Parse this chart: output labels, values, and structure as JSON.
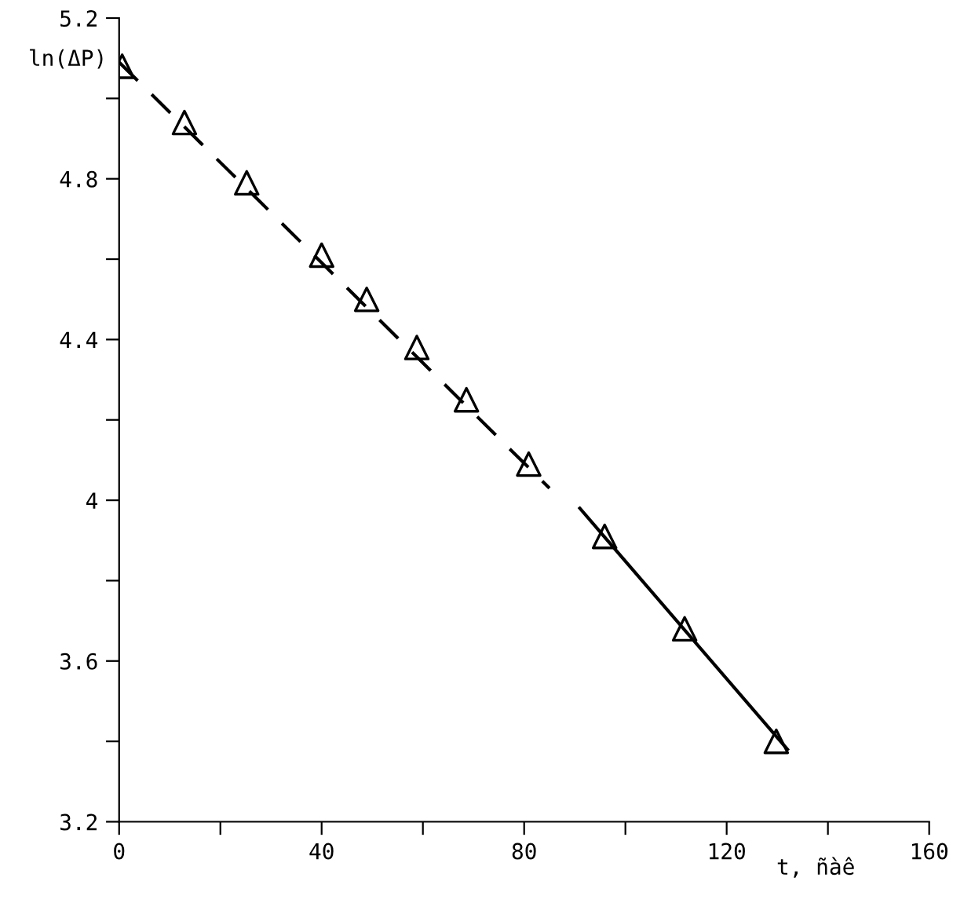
{
  "chart_data": {
    "type": "scatter",
    "xlabel": "t, ñàê",
    "ylabel": "ln(ΔP)",
    "marker": "triangle",
    "grid": false,
    "xlim": [
      0,
      160
    ],
    "ylim": [
      3.2,
      5.2
    ],
    "xticks": [
      0,
      {
        "value": 20,
        "label": null
      },
      40,
      {
        "value": 60,
        "label": null
      },
      80,
      {
        "value": 100,
        "label": null
      },
      120,
      {
        "value": 140,
        "label": null
      },
      160
    ],
    "yticks": [
      3.2,
      {
        "value": 3.4,
        "label": null
      },
      3.6,
      {
        "value": 3.8,
        "label": null
      },
      4,
      {
        "value": 4.2,
        "label": null
      },
      4.4,
      {
        "value": 4.6,
        "label": null
      },
      4.8,
      {
        "value": 5.0,
        "label": null
      },
      5.2
    ],
    "series": [
      {
        "color": "#000000",
        "x": [
          0.6,
          12.9,
          25.2,
          40,
          48.9,
          58.8,
          68.6,
          80.9,
          95.9,
          111.7,
          129.8
        ],
        "values": [
          5.08,
          4.94,
          4.79,
          4.61,
          4.5,
          4.38,
          4.25,
          4.09,
          3.91,
          3.68,
          3.4
        ]
      },
      {
        "type": "line",
        "color": "#000000",
        "line_style": "dashed",
        "marker": "none",
        "x": [
          0,
          85
        ],
        "values": [
          5.09,
          4.03
        ]
      },
      {
        "type": "line",
        "color": "#000000",
        "line_style": "solid",
        "marker": "none",
        "x": [
          91,
          132
        ],
        "values": [
          3.98,
          3.38
        ]
      }
    ]
  }
}
